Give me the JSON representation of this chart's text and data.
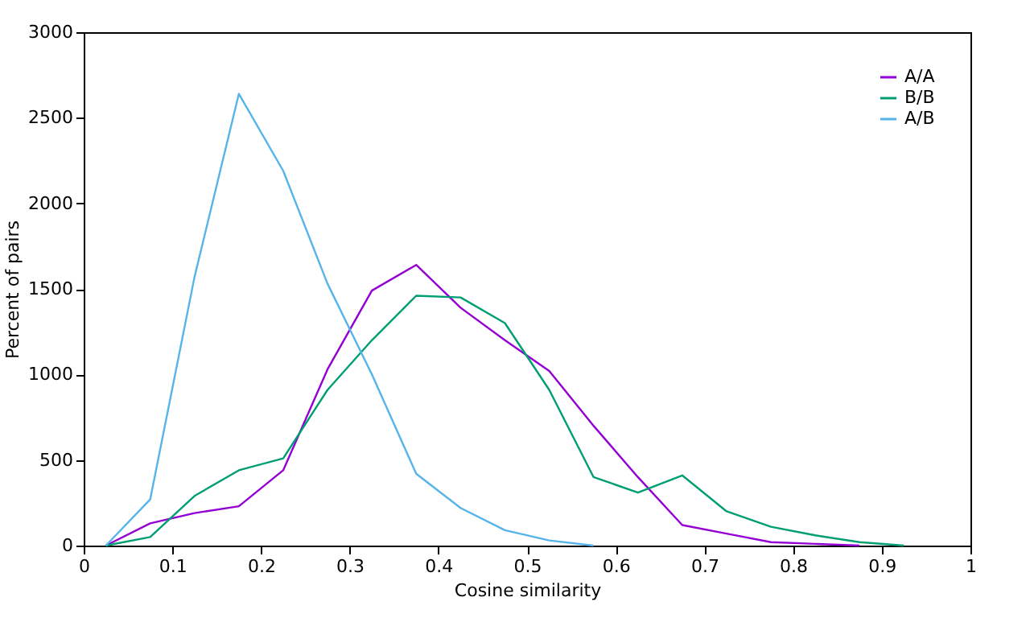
{
  "chart_data": {
    "type": "line",
    "xlabel": "Cosine similarity",
    "ylabel": "Percent of pairs",
    "xlim": [
      0,
      1
    ],
    "xticks": [
      0,
      0.1,
      0.2,
      0.3,
      0.4,
      0.5,
      0.6,
      0.7,
      0.8,
      0.9,
      1
    ],
    "ylim": [
      0,
      3000
    ],
    "yticks": [
      0,
      500,
      1000,
      1500,
      2000,
      2500,
      3000
    ],
    "grid": false,
    "legend": "top right",
    "series": [
      {
        "name": "A/A",
        "color": "#9400d3",
        "x": [
          0.025,
          0.075,
          0.125,
          0.175,
          0.225,
          0.275,
          0.325,
          0.375,
          0.425,
          0.475,
          0.525,
          0.575,
          0.625,
          0.675,
          0.725,
          0.775,
          0.825,
          0.875
        ],
        "values": [
          0,
          130,
          190,
          230,
          440,
          1030,
          1490,
          1640,
          1390,
          1200,
          1020,
          700,
          400,
          120,
          70,
          20,
          10,
          0
        ]
      },
      {
        "name": "B/B",
        "color": "#009e73",
        "x": [
          0.025,
          0.075,
          0.125,
          0.175,
          0.225,
          0.275,
          0.325,
          0.375,
          0.425,
          0.475,
          0.525,
          0.575,
          0.625,
          0.675,
          0.725,
          0.775,
          0.825,
          0.875,
          0.925
        ],
        "values": [
          0,
          50,
          290,
          440,
          510,
          910,
          1200,
          1460,
          1450,
          1300,
          910,
          400,
          310,
          410,
          200,
          110,
          60,
          20,
          0
        ]
      },
      {
        "name": "A/B",
        "color": "#56b4e9",
        "x": [
          0.025,
          0.075,
          0.125,
          0.175,
          0.225,
          0.275,
          0.325,
          0.375,
          0.425,
          0.475,
          0.525,
          0.575
        ],
        "values": [
          0,
          270,
          1570,
          2640,
          2190,
          1530,
          1000,
          420,
          220,
          90,
          30,
          0
        ]
      }
    ]
  }
}
